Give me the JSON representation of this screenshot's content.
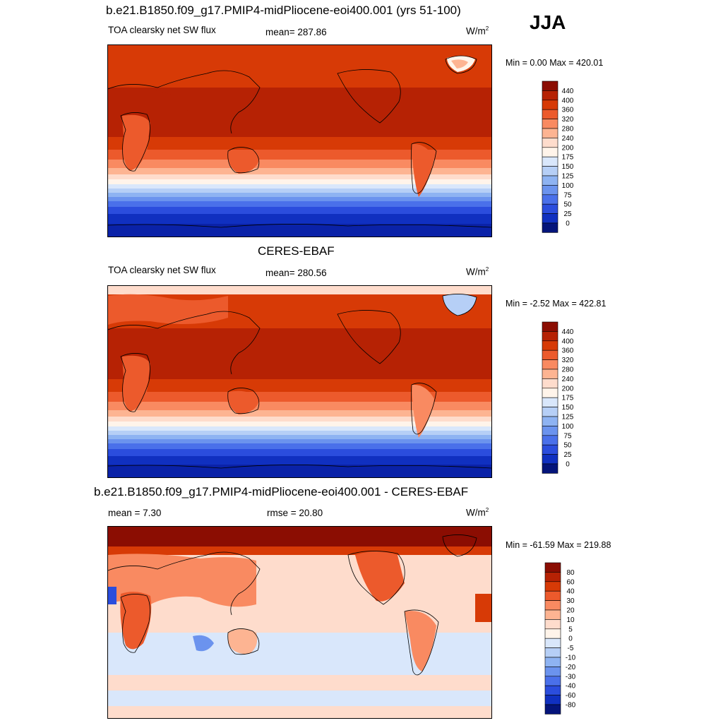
{
  "season": "JJA",
  "panels": [
    {
      "title": "b.e21.B1850.f09_g17.PMIP4-midPliocene-eoi400.001 (yrs 51-100)",
      "left_label": "TOA clearsky net SW flux",
      "center_label": "mean= 287.86",
      "units": "W/m",
      "units_sup": "2",
      "minmax": "Min =   0.00 Max = 420.01",
      "colorbar": {
        "labels": [
          "440",
          "400",
          "360",
          "320",
          "280",
          "240",
          "200",
          "175",
          "150",
          "125",
          "100",
          "75",
          "50",
          "25",
          "0"
        ],
        "colors": [
          "#8b0d02",
          "#b62204",
          "#d73a06",
          "#ec5a2c",
          "#f98a61",
          "#fdb492",
          "#fedccc",
          "#fff4ea",
          "#d9e7fb",
          "#b6cff6",
          "#8eb3f2",
          "#6b93ee",
          "#4a70ea",
          "#2b4ddd",
          "#1030c0",
          "#04147a"
        ]
      }
    },
    {
      "title": "CERES-EBAF",
      "left_label": "TOA clearsky net SW flux",
      "center_label": "mean= 280.56",
      "units": "W/m",
      "units_sup": "2",
      "minmax": "Min =  -2.52 Max = 422.81",
      "colorbar": {
        "labels": [
          "440",
          "400",
          "360",
          "320",
          "280",
          "240",
          "200",
          "175",
          "150",
          "125",
          "100",
          "75",
          "50",
          "25",
          "0"
        ],
        "colors": [
          "#8b0d02",
          "#b62204",
          "#d73a06",
          "#ec5a2c",
          "#f98a61",
          "#fdb492",
          "#fedccc",
          "#fff4ea",
          "#d9e7fb",
          "#b6cff6",
          "#8eb3f2",
          "#6b93ee",
          "#4a70ea",
          "#2b4ddd",
          "#1030c0",
          "#04147a"
        ]
      }
    },
    {
      "title": "b.e21.B1850.f09_g17.PMIP4-midPliocene-eoi400.001 - CERES-EBAF",
      "left_label": "mean =   7.30",
      "center_label": "rmse =  20.80",
      "units": "W/m",
      "units_sup": "2",
      "minmax": "Min = -61.59 Max = 219.88",
      "colorbar": {
        "labels": [
          "80",
          "60",
          "40",
          "30",
          "20",
          "10",
          "5",
          "0",
          "-5",
          "-10",
          "-20",
          "-30",
          "-40",
          "-60",
          "-80"
        ],
        "colors": [
          "#8b0d02",
          "#b62204",
          "#d73a06",
          "#ec5a2c",
          "#f98a61",
          "#fdb492",
          "#fedccc",
          "#fff4ea",
          "#d9e7fb",
          "#b6cff6",
          "#8eb3f2",
          "#6b93ee",
          "#4a70ea",
          "#2b4ddd",
          "#1030c0",
          "#04147a"
        ]
      }
    }
  ]
}
